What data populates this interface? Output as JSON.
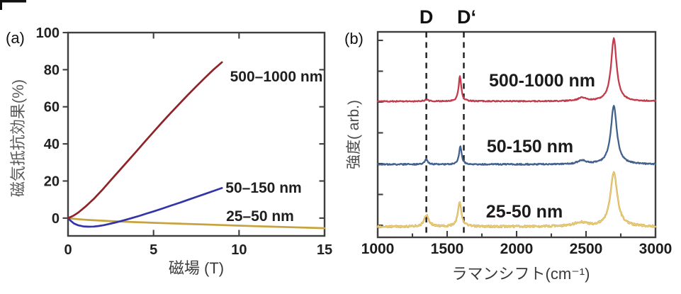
{
  "chart_data": [
    {
      "type": "line",
      "panel_label": "(a)",
      "title": "",
      "xlabel": "磁場 (T)",
      "ylabel": "磁気抵抗効果(%)",
      "xlim": [
        0,
        15
      ],
      "ylim": [
        -9.6,
        100
      ],
      "xticks": [
        0,
        5,
        10,
        15
      ],
      "yticks": [
        0,
        20,
        40,
        60,
        80,
        100
      ],
      "grid": false,
      "legend": "inline-colored-labels",
      "series": [
        {
          "name": "25–50 nm",
          "color": "#c6a33e",
          "label_color": "#b59754",
          "points": [
            [
              0,
              0
            ],
            [
              0.4,
              -0.45
            ],
            [
              0.8,
              -0.75
            ],
            [
              1.2,
              -1.0
            ],
            [
              1.6,
              -1.2
            ],
            [
              2,
              -1.4
            ],
            [
              2.5,
              -1.62
            ],
            [
              3,
              -1.82
            ],
            [
              3.5,
              -2.0
            ],
            [
              4,
              -2.18
            ],
            [
              4.5,
              -2.35
            ],
            [
              5,
              -2.52
            ],
            [
              6,
              -2.85
            ],
            [
              7,
              -3.15
            ],
            [
              8,
              -3.45
            ],
            [
              9,
              -3.75
            ],
            [
              10,
              -4.05
            ],
            [
              11,
              -4.35
            ],
            [
              12,
              -4.62
            ],
            [
              13,
              -4.9
            ],
            [
              14,
              -5.18
            ],
            [
              15,
              -5.45
            ]
          ]
        },
        {
          "name": "50–150 nm",
          "color": "#3334a6",
          "label_color": "#33339e",
          "points": [
            [
              0,
              0
            ],
            [
              0.15,
              -1.4
            ],
            [
              0.35,
              -2.9
            ],
            [
              0.6,
              -3.9
            ],
            [
              0.9,
              -4.5
            ],
            [
              1.2,
              -4.65
            ],
            [
              1.5,
              -4.55
            ],
            [
              1.8,
              -4.25
            ],
            [
              2.1,
              -3.8
            ],
            [
              2.4,
              -3.2
            ],
            [
              2.7,
              -2.55
            ],
            [
              3,
              -1.85
            ],
            [
              3.4,
              -0.85
            ],
            [
              3.8,
              0.2
            ],
            [
              4.2,
              1.3
            ],
            [
              4.6,
              2.45
            ],
            [
              5,
              3.6
            ],
            [
              5.5,
              5.1
            ],
            [
              6,
              6.65
            ],
            [
              6.5,
              8.2
            ],
            [
              7,
              9.8
            ],
            [
              7.5,
              11.4
            ],
            [
              8,
              13.0
            ],
            [
              8.5,
              14.6
            ],
            [
              9,
              16.2
            ]
          ]
        },
        {
          "name": "500–1000 nm",
          "color": "#8e2328",
          "label_color": "#8e2328",
          "points": [
            [
              0,
              0
            ],
            [
              0.3,
              1.2
            ],
            [
              0.6,
              3.0
            ],
            [
              1,
              6.0
            ],
            [
              1.5,
              10.3
            ],
            [
              2,
              15.2
            ],
            [
              2.5,
              20.4
            ],
            [
              3,
              25.6
            ],
            [
              3.5,
              30.8
            ],
            [
              4,
              36.0
            ],
            [
              4.5,
              41.3
            ],
            [
              5,
              46.5
            ],
            [
              5.5,
              51.6
            ],
            [
              6,
              56.6
            ],
            [
              6.5,
              61.5
            ],
            [
              7,
              66.3
            ],
            [
              7.5,
              71.0
            ],
            [
              8,
              75.6
            ],
            [
              8.5,
              80.0
            ],
            [
              9,
              84.0
            ]
          ]
        }
      ]
    },
    {
      "type": "line",
      "panel_label": "(b)",
      "title": "",
      "xlabel": "ラマンシフト(cm⁻¹)",
      "ylabel": "強度( arb.)",
      "xlim": [
        1000,
        3000
      ],
      "xticks": [
        1000,
        1500,
        2000,
        2500,
        3000
      ],
      "xticks_minor": [
        1250,
        1750,
        2250,
        2750
      ],
      "y_axis_unlabeled_ticks": 7,
      "grid": false,
      "annotations": [
        {
          "label": "D",
          "x": 1350
        },
        {
          "label": "D‘",
          "x": 1620
        }
      ],
      "series": [
        {
          "name": "500-1000 nm",
          "color": "#c43b4c",
          "offset": 0.662,
          "noise": 0.005,
          "seed": 11,
          "peaks": [
            {
              "center": 1350,
              "height": 0.008,
              "hwhm": 15
            },
            {
              "center": 1592,
              "height": 0.125,
              "hwhm": 11
            },
            {
              "center": 2470,
              "height": 0.016,
              "hwhm": 35
            },
            {
              "center": 2700,
              "height": 0.305,
              "hwhm": 24
            }
          ]
        },
        {
          "name": "50-150 nm",
          "color": "#42618d",
          "offset": 0.355,
          "noise": 0.006,
          "seed": 23,
          "peaks": [
            {
              "center": 1350,
              "height": 0.026,
              "hwhm": 12
            },
            {
              "center": 1595,
              "height": 0.088,
              "hwhm": 11
            },
            {
              "center": 2470,
              "height": 0.018,
              "hwhm": 35
            },
            {
              "center": 2700,
              "height": 0.285,
              "hwhm": 26
            }
          ]
        },
        {
          "name": "25-50 nm",
          "color": "#d0a747",
          "color_core": "#ecd382",
          "offset": 0.052,
          "noise": 0.01,
          "seed": 37,
          "peaks": [
            {
              "center": 1352,
              "height": 0.056,
              "hwhm": 20
            },
            {
              "center": 1590,
              "height": 0.122,
              "hwhm": 15
            },
            {
              "center": 2460,
              "height": 0.02,
              "hwhm": 55
            },
            {
              "center": 2700,
              "height": 0.262,
              "hwhm": 30
            }
          ]
        }
      ]
    }
  ]
}
